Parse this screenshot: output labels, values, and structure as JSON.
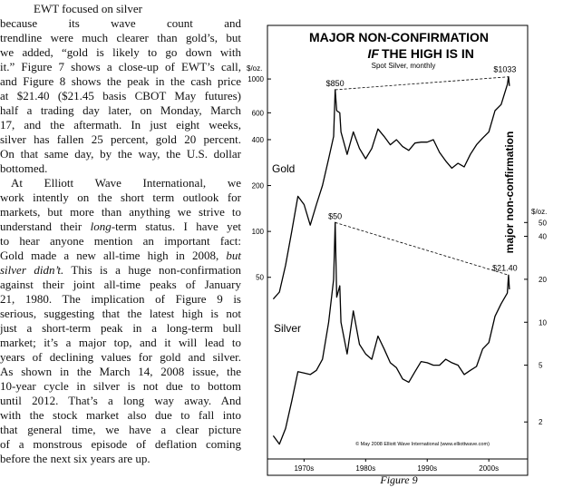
{
  "body": {
    "paragraphs": [
      {
        "lines": [
          [
            "EWT focused on silver"
          ],
          [
            "because its wave count and"
          ],
          [
            "trendline were much clearer than gold’s, but"
          ],
          [
            "we added, “gold is likely to go down with"
          ],
          [
            "it.” Figure 7 shows a close-up of EWT’s call,"
          ],
          [
            "and Figure 8 shows the peak in the cash price"
          ],
          [
            "at $21.40 ($21.45 basis CBOT May futures)"
          ],
          [
            "half a trading day later, on Monday, March"
          ],
          [
            "17, and the aftermath. In just eight weeks,"
          ],
          [
            "silver has fallen 25 percent, gold 20 percent."
          ],
          [
            "On that same day, by the way, the U.S. dollar"
          ],
          [
            "bottomed."
          ]
        ]
      },
      {
        "lines": [
          [
            "At Elliott Wave International, we"
          ],
          [
            "work intently on the short term outlook for"
          ],
          [
            "markets, but more than anything we strive to"
          ],
          [
            "understand their ",
            {
              "text": "long",
              "italic": true
            },
            "-term status. I have yet"
          ],
          [
            "to hear anyone mention an important fact:"
          ],
          [
            "Gold made a new all-time high in 2008, ",
            {
              "text": "but",
              "italic": true
            }
          ],
          [
            {
              "text": "silver didn’t.",
              "italic": true
            },
            " This is a huge non-confirmation"
          ],
          [
            "against their joint all-time peaks of January"
          ],
          [
            "21, 1980. The implication of Figure 9 is"
          ],
          [
            "serious, suggesting that the latest high is not"
          ],
          [
            "just a short-term peak in a long-term bull"
          ],
          [
            "market; it’s a major top, and it will lead to"
          ],
          [
            "years of declining values for gold and silver."
          ],
          [
            "As shown in the March 14, 2008 issue, the"
          ],
          [
            "10-year cycle in silver is not due to bottom"
          ],
          [
            "until 2012. That’s a long way away. And"
          ],
          [
            "with the stock market also due to fall into"
          ],
          [
            "that general time, we have a clear picture"
          ],
          [
            "of a monstrous episode of deflation coming"
          ],
          [
            "before the next six years are up."
          ]
        ]
      }
    ]
  },
  "figure": {
    "caption": "Figure 9",
    "chart_data": {
      "type": "line",
      "title": "MAJOR NON-CONFIRMATION",
      "subtitle_emphasis": "IF",
      "subtitle": "THE HIGH IS IN",
      "note": "Spot Silver, monthly",
      "side_label": "major non-confirmation",
      "credit": "© May 2008 Elliott Wave International (www.elliottwave.com)",
      "ylabel": "$/oz.",
      "y2label": "$/oz.",
      "log_scale": true,
      "xlim": [
        1969.5,
        2008.8
      ],
      "xticks": [
        {
          "value": 1975,
          "label": "1970s"
        },
        {
          "value": 1985,
          "label": "1980s"
        },
        {
          "value": 1995,
          "label": "1990s"
        },
        {
          "value": 2005,
          "label": "2000s"
        }
      ],
      "ylim": [
        3.35,
        1180
      ],
      "yticks": [
        50,
        100,
        200,
        400,
        600,
        1000
      ],
      "y2lim": [
        1.15,
        605
      ],
      "y2ticks": [
        2,
        5,
        10,
        20,
        40,
        50
      ],
      "x": [
        1970,
        1971,
        1972,
        1973,
        1974,
        1975,
        1976,
        1977,
        1978,
        1979,
        1979.8,
        1980.05,
        1980.3,
        1980.8,
        1981,
        1982,
        1983,
        1984,
        1985,
        1986,
        1987,
        1988,
        1989,
        1990,
        1991,
        1992,
        1993,
        1994,
        1995,
        1996,
        1997,
        1998,
        1999,
        2000,
        2001,
        2002,
        2003,
        2004,
        2005,
        2006,
        2007,
        2008,
        2008.2,
        2008.35
      ],
      "series": [
        {
          "name": "Gold",
          "color": "#000000",
          "values": [
            36,
            40,
            60,
            100,
            170,
            150,
            110,
            150,
            200,
            300,
            420,
            850,
            620,
            600,
            450,
            320,
            450,
            350,
            300,
            350,
            470,
            420,
            370,
            400,
            360,
            340,
            380,
            385,
            385,
            400,
            330,
            290,
            260,
            280,
            265,
            320,
            370,
            410,
            450,
            620,
            680,
            920,
            1033,
            900
          ]
        },
        {
          "name": "Silver",
          "color": "#000000",
          "axis": "y2",
          "values": [
            1.6,
            1.4,
            1.8,
            2.8,
            4.5,
            4.4,
            4.3,
            4.6,
            5.5,
            10,
            20,
            50,
            15,
            18,
            10,
            6,
            12,
            7,
            6,
            5.5,
            8,
            6.5,
            5.2,
            4.8,
            4,
            3.8,
            4.5,
            5.3,
            5.2,
            5,
            5,
            5.5,
            5.2,
            5,
            4.3,
            4.6,
            4.9,
            6.5,
            7.2,
            11,
            13.5,
            16,
            21.4,
            17
          ]
        }
      ],
      "annotations": [
        "$850",
        "$1033",
        "$50",
        "$21.40"
      ]
    }
  }
}
